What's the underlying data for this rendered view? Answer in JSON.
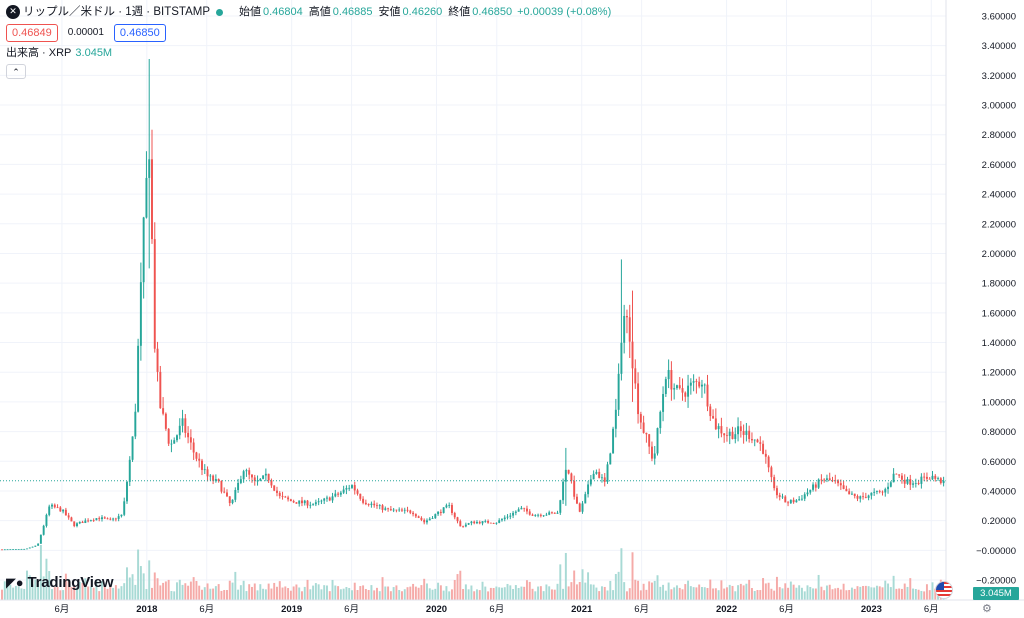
{
  "header": {
    "symbol_icon": "x-close-icon",
    "symbol_icon_glyph": "✕",
    "title": "リップル／米ドル · 1週 · BITSTAMP",
    "status_color": "#26a69a",
    "ohlc": [
      {
        "label": "始値",
        "value": "0.46804"
      },
      {
        "label": "高値",
        "value": "0.46885"
      },
      {
        "label": "安値",
        "value": "0.46260"
      },
      {
        "label": "終値",
        "value": "0.46850"
      }
    ],
    "change": "+0.00039 (+0.08%)",
    "sell_price": "0.46849",
    "spread": "0.00001",
    "buy_price": "0.46850"
  },
  "volume_legend": {
    "label": "出来高 · XRP",
    "value": "3.045M",
    "collapse_icon": "chevron-up-icon",
    "collapse_glyph": "⌃"
  },
  "branding": {
    "logo_icon": "tradingview-logo-icon",
    "logo_glyph": "◤●",
    "name": "TradingView"
  },
  "volume_tag": "3.045M",
  "settings_icon": {
    "name": "gear-icon",
    "glyph": "⚙"
  },
  "colors": {
    "up": "#26a69a",
    "down": "#ef5350",
    "vol_up": "#a8dad5",
    "vol_down": "#f5aaa8",
    "grid": "#f0f3fa",
    "axis_text": "#131722",
    "last_price_line": "#26a69a"
  },
  "chart_data": {
    "type": "candlestick",
    "symbol": "XRP/USD",
    "interval": "1W",
    "exchange": "BITSTAMP",
    "y_axis_ticks": [
      "3.60000",
      "3.40000",
      "3.20000",
      "3.00000",
      "2.80000",
      "2.60000",
      "2.40000",
      "2.20000",
      "2.00000",
      "1.80000",
      "1.60000",
      "1.40000",
      "1.20000",
      "1.00000",
      "0.80000",
      "0.60000",
      "0.40000",
      "0.20000",
      "−0.00000",
      "−0.20000"
    ],
    "y_axis_position": "right",
    "ylim": [
      -0.22,
      3.62
    ],
    "x_axis_ticks": [
      {
        "label": "6月",
        "date": "2017-06",
        "bold": false
      },
      {
        "label": "2018",
        "date": "2018-01",
        "bold": true
      },
      {
        "label": "6月",
        "date": "2018-06",
        "bold": false
      },
      {
        "label": "2019",
        "date": "2019-01",
        "bold": true
      },
      {
        "label": "6月",
        "date": "2019-06",
        "bold": false
      },
      {
        "label": "2020",
        "date": "2020-01",
        "bold": true
      },
      {
        "label": "6月",
        "date": "2020-06",
        "bold": false
      },
      {
        "label": "2021",
        "date": "2021-01",
        "bold": true
      },
      {
        "label": "6月",
        "date": "2021-06",
        "bold": false
      },
      {
        "label": "2022",
        "date": "2022-01",
        "bold": true
      },
      {
        "label": "6月",
        "date": "2022-06",
        "bold": false
      },
      {
        "label": "2023",
        "date": "2023-01",
        "bold": true
      },
      {
        "label": "6月",
        "date": "2023-06",
        "bold": false
      }
    ],
    "last_price": 0.4685,
    "grid": true,
    "volume_pane": true,
    "close_path": [
      [
        "2017-01",
        0.006
      ],
      [
        "2017-03",
        0.009
      ],
      [
        "2017-04",
        0.035
      ],
      [
        "2017-05",
        0.3
      ],
      [
        "2017-06",
        0.27
      ],
      [
        "2017-07",
        0.17
      ],
      [
        "2017-08",
        0.2
      ],
      [
        "2017-09",
        0.22
      ],
      [
        "2017-10",
        0.2
      ],
      [
        "2017-11",
        0.24
      ],
      [
        "2017-12",
        0.85
      ],
      [
        "2017-12-25",
        2.2
      ],
      [
        "2018-01-07",
        2.75
      ],
      [
        "2018-01-21",
        1.4
      ],
      [
        "2018-02",
        1.0
      ],
      [
        "2018-03",
        0.7
      ],
      [
        "2018-04",
        0.85
      ],
      [
        "2018-05",
        0.65
      ],
      [
        "2018-06",
        0.5
      ],
      [
        "2018-07",
        0.45
      ],
      [
        "2018-08",
        0.3
      ],
      [
        "2018-09",
        0.55
      ],
      [
        "2018-10",
        0.45
      ],
      [
        "2018-11",
        0.5
      ],
      [
        "2018-12",
        0.36
      ],
      [
        "2019-01",
        0.33
      ],
      [
        "2019-03",
        0.31
      ],
      [
        "2019-05",
        0.38
      ],
      [
        "2019-06",
        0.44
      ],
      [
        "2019-07",
        0.33
      ],
      [
        "2019-09",
        0.27
      ],
      [
        "2019-11",
        0.26
      ],
      [
        "2019-12",
        0.19
      ],
      [
        "2020-02",
        0.3
      ],
      [
        "2020-03",
        0.16
      ],
      [
        "2020-04",
        0.19
      ],
      [
        "2020-06",
        0.19
      ],
      [
        "2020-08",
        0.28
      ],
      [
        "2020-09",
        0.24
      ],
      [
        "2020-11",
        0.25
      ],
      [
        "2020-11-25",
        0.6
      ],
      [
        "2020-12",
        0.5
      ],
      [
        "2020-12-25",
        0.25
      ],
      [
        "2021-01",
        0.29
      ],
      [
        "2021-02",
        0.55
      ],
      [
        "2021-03",
        0.45
      ],
      [
        "2021-04",
        1.0
      ],
      [
        "2021-04-14",
        1.6
      ],
      [
        "2021-05",
        1.5
      ],
      [
        "2021-05-20",
        1.0
      ],
      [
        "2021-06",
        0.85
      ],
      [
        "2021-07",
        0.6
      ],
      [
        "2021-08",
        1.2
      ],
      [
        "2021-09",
        1.05
      ],
      [
        "2021-10",
        1.1
      ],
      [
        "2021-11",
        1.15
      ],
      [
        "2021-12",
        0.85
      ],
      [
        "2022-01",
        0.78
      ],
      [
        "2022-02",
        0.8
      ],
      [
        "2022-03",
        0.78
      ],
      [
        "2022-04",
        0.7
      ],
      [
        "2022-05",
        0.4
      ],
      [
        "2022-06",
        0.32
      ],
      [
        "2022-07",
        0.34
      ],
      [
        "2022-09",
        0.48
      ],
      [
        "2022-10",
        0.46
      ],
      [
        "2022-11",
        0.38
      ],
      [
        "2022-12",
        0.35
      ],
      [
        "2023-01",
        0.38
      ],
      [
        "2023-02",
        0.39
      ],
      [
        "2023-03",
        0.52
      ],
      [
        "2023-04",
        0.46
      ],
      [
        "2023-05",
        0.47
      ],
      [
        "2023-06",
        0.5
      ],
      [
        "2023-06-20",
        0.4685
      ]
    ],
    "spikes": [
      {
        "date": "2018-01-07",
        "high": 3.31,
        "low": 1.9
      },
      {
        "date": "2021-04-14",
        "high": 1.96,
        "low": 1.2
      },
      {
        "date": "2021-05-10",
        "high": 1.75,
        "low": 1.0
      },
      {
        "date": "2020-11-25",
        "high": 0.69,
        "low": 0.3
      }
    ]
  }
}
